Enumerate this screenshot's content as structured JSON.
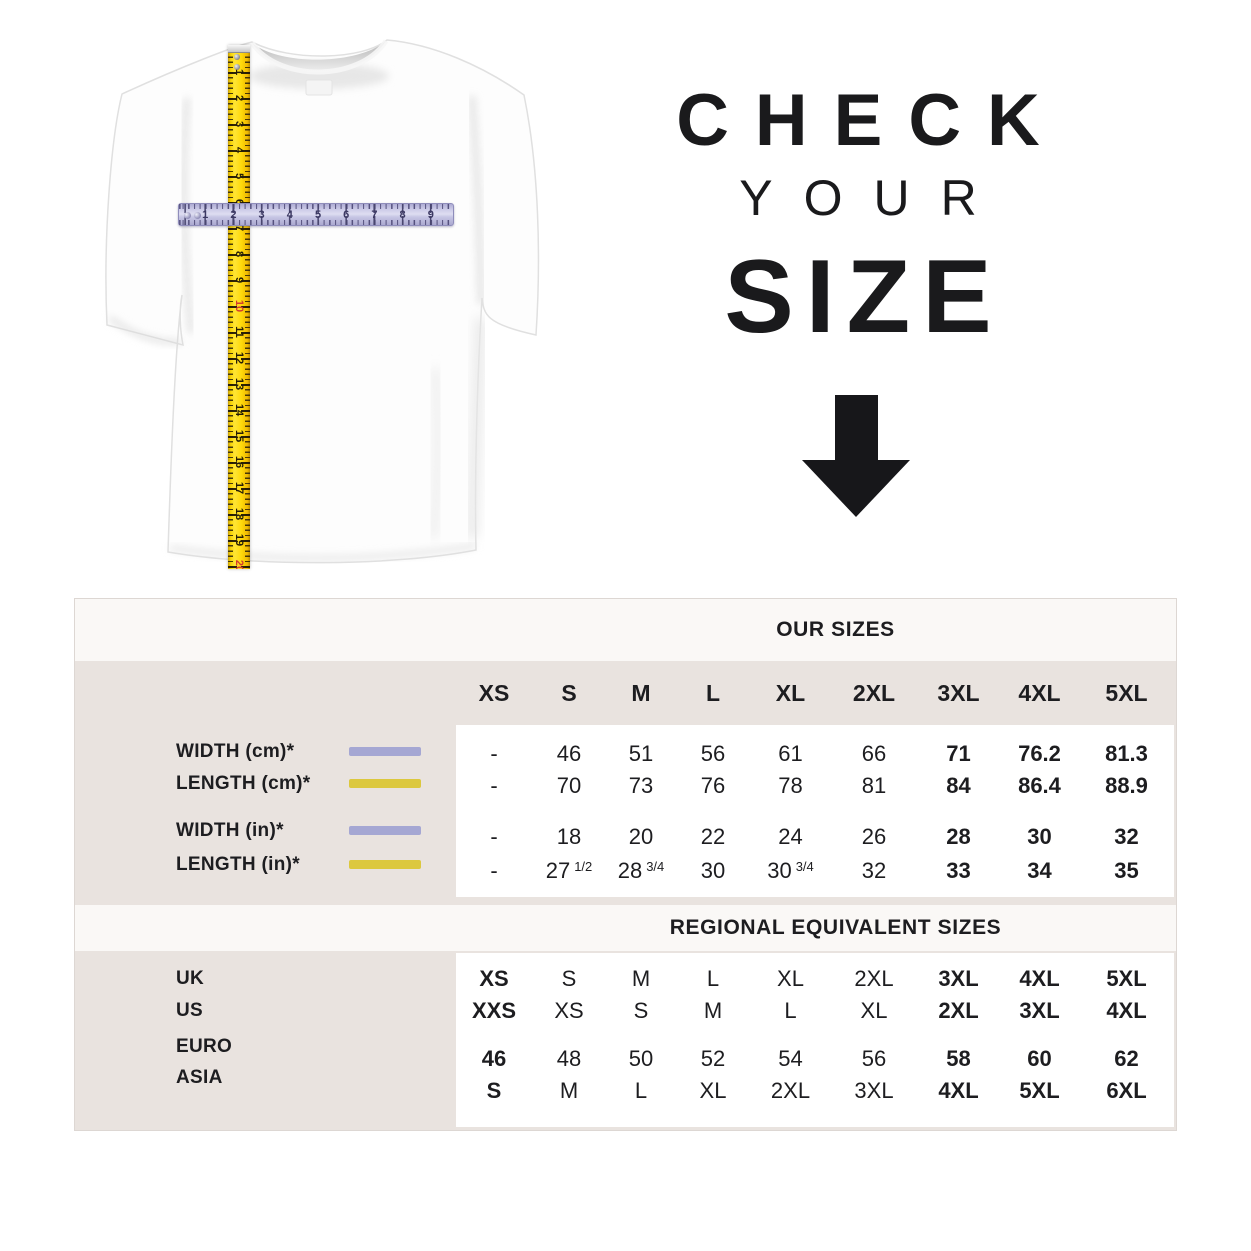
{
  "theme": {
    "beige": "#e9e3df",
    "band": "#faf8f6",
    "ink": "#1d1d20",
    "swatch_lavender": "#a5a7d3",
    "swatch_yellow": "#dcc83e",
    "tape_red": "#d33a2f"
  },
  "headline": {
    "line1": "CHECK",
    "line2": "YOUR",
    "line3": "SIZE"
  },
  "shirt": {
    "vertical_tape_numbers": [
      "1",
      "2",
      "3",
      "4",
      "5",
      "6",
      "7",
      "8",
      "9",
      "10",
      "11",
      "12",
      "13",
      "14",
      "15",
      "16",
      "17",
      "18",
      "19",
      "20"
    ],
    "vertical_tape_red_numbers": [
      "10",
      "20"
    ],
    "horizontal_ruler_numbers": [
      "1",
      "2",
      "3",
      "4",
      "5",
      "6",
      "7",
      "8",
      "9"
    ]
  },
  "sizes_table": {
    "title": "OUR SIZES",
    "columns": [
      "XS",
      "S",
      "M",
      "L",
      "XL",
      "2XL",
      "3XL",
      "4XL",
      "5XL"
    ],
    "bold_from_column": 6,
    "measure_rows": [
      {
        "label": "WIDTH (cm)*",
        "swatch": "lavender",
        "values": [
          "-",
          "46",
          "51",
          "56",
          "61",
          "66",
          "71",
          "76.2",
          "81.3"
        ]
      },
      {
        "label": "LENGTH (cm)*",
        "swatch": "yellow",
        "values": [
          "-",
          "70",
          "73",
          "76",
          "78",
          "81",
          "84",
          "86.4",
          "88.9"
        ]
      },
      {
        "label": "WIDTH (in)*",
        "swatch": "lavender",
        "values": [
          "-",
          "18",
          "20",
          "22",
          "24",
          "26",
          "28",
          "30",
          "32"
        ]
      },
      {
        "label": "LENGTH (in)*",
        "swatch": "yellow",
        "values": [
          "-",
          "27 1/2",
          "28 3/4",
          "30",
          "30 3/4",
          "32",
          "33",
          "34",
          "35"
        ]
      }
    ],
    "regional_title": "REGIONAL EQUIVALENT SIZES",
    "regional_rows": [
      {
        "label": "UK",
        "values": [
          "XS",
          "S",
          "M",
          "L",
          "XL",
          "2XL",
          "3XL",
          "4XL",
          "5XL"
        ]
      },
      {
        "label": "US",
        "values": [
          "XXS",
          "XS",
          "S",
          "M",
          "L",
          "XL",
          "2XL",
          "3XL",
          "4XL"
        ]
      },
      {
        "label": "EURO",
        "values": [
          "46",
          "48",
          "50",
          "52",
          "54",
          "56",
          "58",
          "60",
          "62"
        ]
      },
      {
        "label": "ASIA",
        "values": [
          "S",
          "M",
          "L",
          "XL",
          "2XL",
          "3XL",
          "4XL",
          "5XL",
          "6XL"
        ]
      }
    ]
  }
}
